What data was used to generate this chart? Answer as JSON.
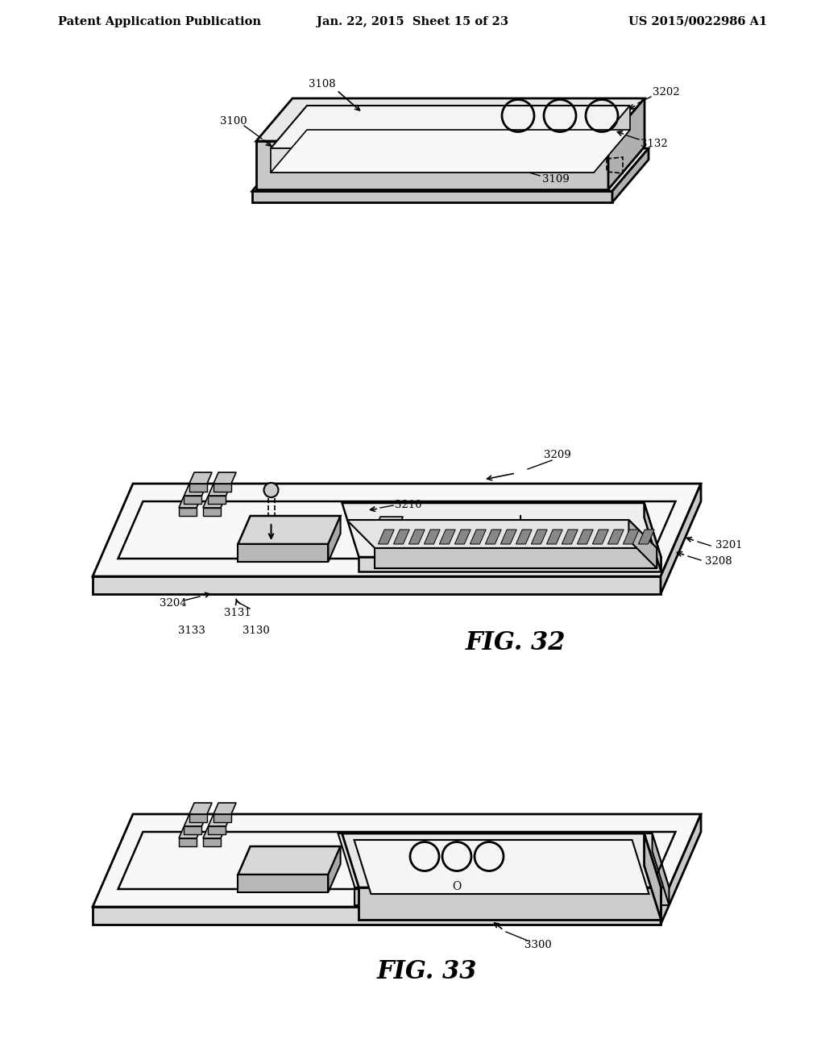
{
  "bg_color": "#ffffff",
  "header_left": "Patent Application Publication",
  "header_mid": "Jan. 22, 2015  Sheet 15 of 23",
  "header_right": "US 2015/0022986 A1",
  "fig32_label": "FIG. 32",
  "fig33_label": "FIG. 33",
  "lc": "#000000",
  "gray_top": "#e8e8e8",
  "gray_side_l": "#c8c8c8",
  "gray_side_r": "#b0b0b0",
  "gray_inner": "#f4f4f4",
  "font_size_header": 10.5,
  "font_size_label": 9.5,
  "font_size_fig": 22
}
